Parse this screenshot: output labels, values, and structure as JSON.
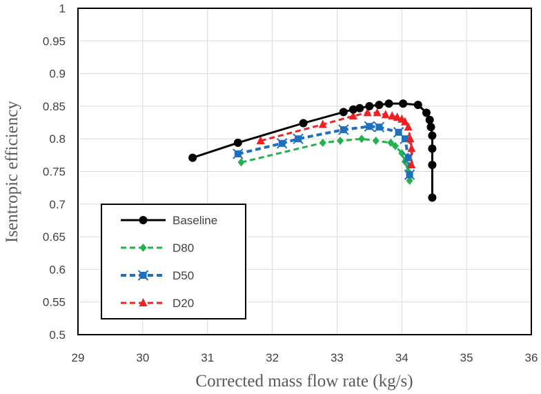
{
  "chart_data": {
    "type": "line",
    "title": "",
    "xlabel": "Corrected mass flow rate (kg/s)",
    "ylabel": "Isentropic efficiency",
    "xlim": [
      29,
      36
    ],
    "ylim": [
      0.5,
      1
    ],
    "xticks": [
      "29",
      "30",
      "31",
      "32",
      "33",
      "34",
      "35",
      "36"
    ],
    "yticks": [
      "0.5",
      "0.55",
      "0.6",
      "0.65",
      "0.7",
      "0.75",
      "0.8",
      "0.85",
      "0.9",
      "0.95",
      "1"
    ],
    "grid": true,
    "legend_position": "bottom-left",
    "series": [
      {
        "name": "Baseline",
        "color": "#000000",
        "marker": "circle",
        "dash": "solid",
        "x": [
          30.77,
          31.47,
          32.48,
          33.1,
          33.25,
          33.35,
          33.5,
          33.65,
          33.8,
          34.02,
          34.25,
          34.38,
          34.43,
          34.45,
          34.47,
          34.47,
          34.47,
          34.47
        ],
        "y": [
          0.771,
          0.794,
          0.824,
          0.841,
          0.845,
          0.847,
          0.85,
          0.852,
          0.854,
          0.854,
          0.852,
          0.84,
          0.829,
          0.818,
          0.805,
          0.785,
          0.76,
          0.71
        ]
      },
      {
        "name": "D80",
        "color": "#22b14c",
        "marker": "diamond",
        "dash": "dashed",
        "x": [
          31.52,
          32.78,
          33.05,
          33.38,
          33.6,
          33.83,
          33.9,
          34.0,
          34.05,
          34.1,
          34.12
        ],
        "y": [
          0.764,
          0.794,
          0.797,
          0.8,
          0.797,
          0.794,
          0.789,
          0.778,
          0.765,
          0.75,
          0.736
        ]
      },
      {
        "name": "D50",
        "color": "#1f6fbf",
        "marker": "x-square",
        "dash": "dashed",
        "x": [
          31.47,
          32.15,
          32.4,
          33.1,
          33.5,
          33.65,
          33.95,
          34.05,
          34.1,
          34.12
        ],
        "y": [
          0.777,
          0.793,
          0.8,
          0.814,
          0.819,
          0.818,
          0.81,
          0.8,
          0.771,
          0.745
        ]
      },
      {
        "name": "D20",
        "color": "#ee2222",
        "marker": "triangle",
        "dash": "dashed",
        "x": [
          31.82,
          32.78,
          33.25,
          33.47,
          33.62,
          33.75,
          33.85,
          33.93,
          34.0,
          34.05,
          34.1,
          34.13,
          34.15,
          34.15
        ],
        "y": [
          0.797,
          0.822,
          0.835,
          0.84,
          0.84,
          0.837,
          0.835,
          0.833,
          0.83,
          0.826,
          0.818,
          0.8,
          0.785,
          0.76
        ]
      }
    ]
  }
}
